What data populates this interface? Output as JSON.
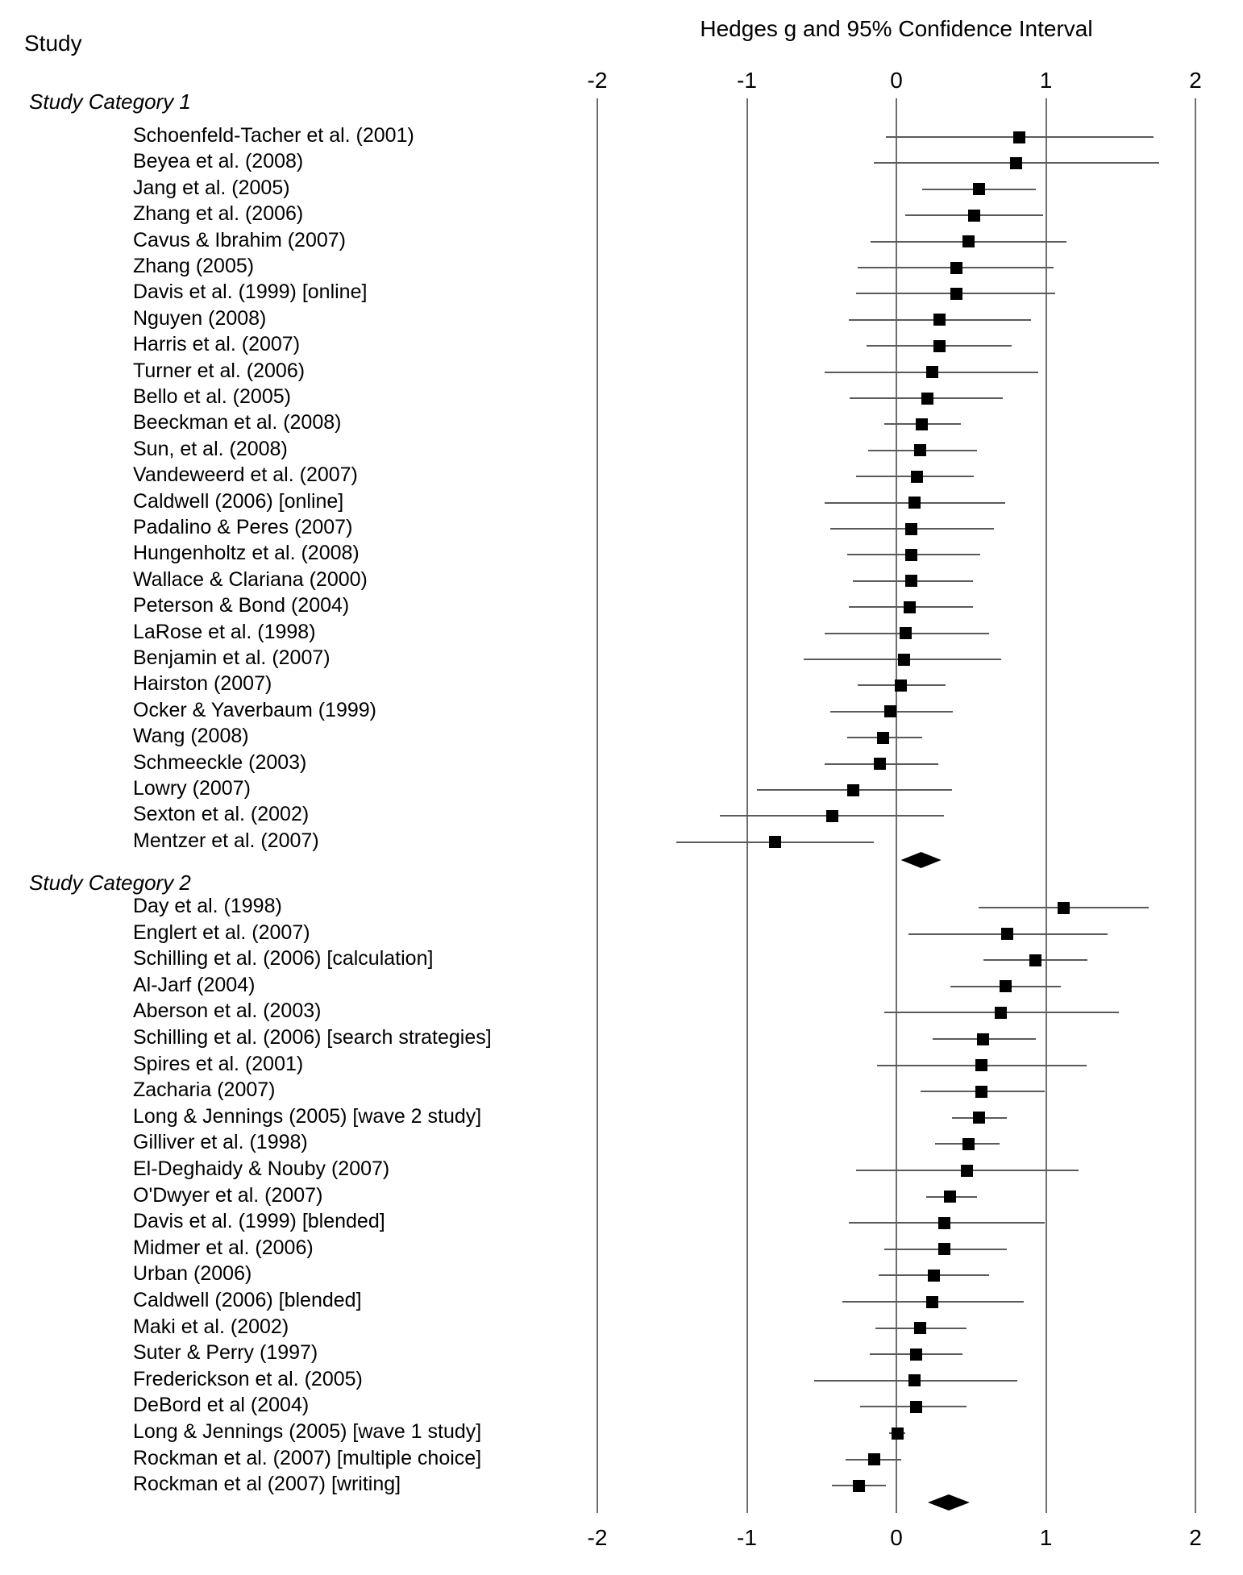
{
  "page": {
    "left_header": "Study"
  },
  "chart_data": {
    "type": "forest",
    "title": "Hedges g and 95% Confidence Interval",
    "left_header": "Study",
    "xlabel": "Hedges g",
    "xlim": [
      -2,
      2
    ],
    "x_ticks": [
      "-2",
      "-1",
      "0",
      "1",
      "2"
    ],
    "x_tick_values": [
      -2,
      -1,
      0,
      1,
      2
    ],
    "grid": "vertical-lines-at-ticks",
    "marker": "black-square",
    "summary_marker": "black-diamond",
    "groups": [
      {
        "label": "Study Category 1",
        "studies": [
          {
            "name": "Schoenfeld-Tacher et al. (2001)",
            "g": 0.82,
            "ci": [
              -0.07,
              1.72
            ]
          },
          {
            "name": "Beyea et al. (2008)",
            "g": 0.8,
            "ci": [
              -0.15,
              1.76
            ]
          },
          {
            "name": "Jang et al. (2005)",
            "g": 0.55,
            "ci": [
              0.17,
              0.93
            ]
          },
          {
            "name": "Zhang et al. (2006)",
            "g": 0.52,
            "ci": [
              0.06,
              0.98
            ]
          },
          {
            "name": "Cavus & Ibrahim (2007)",
            "g": 0.48,
            "ci": [
              -0.17,
              1.14
            ]
          },
          {
            "name": "Zhang (2005)",
            "g": 0.4,
            "ci": [
              -0.26,
              1.05
            ]
          },
          {
            "name": "Davis et al. (1999) [online]",
            "g": 0.4,
            "ci": [
              -0.27,
              1.06
            ]
          },
          {
            "name": "Nguyen (2008)",
            "g": 0.29,
            "ci": [
              -0.32,
              0.9
            ]
          },
          {
            "name": "Harris et al. (2007)",
            "g": 0.29,
            "ci": [
              -0.2,
              0.77
            ]
          },
          {
            "name": "Turner et al. (2006)",
            "g": 0.24,
            "ci": [
              -0.48,
              0.95
            ]
          },
          {
            "name": "Bello et al. (2005)",
            "g": 0.21,
            "ci": [
              -0.31,
              0.71
            ]
          },
          {
            "name": "Beeckman et al. (2008)",
            "g": 0.17,
            "ci": [
              -0.08,
              0.43
            ]
          },
          {
            "name": "Sun, et al. (2008)",
            "g": 0.16,
            "ci": [
              -0.19,
              0.54
            ]
          },
          {
            "name": "Vandeweerd et al. (2007)",
            "g": 0.14,
            "ci": [
              -0.27,
              0.52
            ]
          },
          {
            "name": "Caldwell (2006) [online]",
            "g": 0.12,
            "ci": [
              -0.48,
              0.73
            ]
          },
          {
            "name": "Padalino & Peres (2007)",
            "g": 0.1,
            "ci": [
              -0.44,
              0.65
            ]
          },
          {
            "name": "Hungenholtz et al. (2008)",
            "g": 0.1,
            "ci": [
              -0.33,
              0.56
            ]
          },
          {
            "name": "Wallace & Clariana (2000)",
            "g": 0.1,
            "ci": [
              -0.29,
              0.51
            ]
          },
          {
            "name": "Peterson & Bond (2004)",
            "g": 0.09,
            "ci": [
              -0.32,
              0.51
            ]
          },
          {
            "name": "LaRose et al. (1998)",
            "g": 0.06,
            "ci": [
              -0.48,
              0.62
            ]
          },
          {
            "name": "Benjamin et al. (2007)",
            "g": 0.05,
            "ci": [
              -0.62,
              0.7
            ]
          },
          {
            "name": "Hairston (2007)",
            "g": 0.03,
            "ci": [
              -0.26,
              0.33
            ]
          },
          {
            "name": "Ocker & Yaverbaum (1999)",
            "g": -0.04,
            "ci": [
              -0.44,
              0.38
            ]
          },
          {
            "name": "Wang (2008)",
            "g": -0.09,
            "ci": [
              -0.33,
              0.17
            ]
          },
          {
            "name": "Schmeeckle (2003)",
            "g": -0.11,
            "ci": [
              -0.48,
              0.28
            ]
          },
          {
            "name": "Lowry (2007)",
            "g": -0.29,
            "ci": [
              -0.93,
              0.37
            ]
          },
          {
            "name": "Sexton et al. (2002)",
            "g": -0.43,
            "ci": [
              -1.18,
              0.32
            ]
          },
          {
            "name": "Mentzer et al. (2007)",
            "g": -0.81,
            "ci": [
              -1.47,
              -0.15
            ]
          }
        ],
        "summary": {
          "g": 0.16,
          "ci": [
            0.03,
            0.3
          ]
        }
      },
      {
        "label": "Study Category 2",
        "studies": [
          {
            "name": "Day et al. (1998)",
            "g": 1.12,
            "ci": [
              0.55,
              1.69
            ]
          },
          {
            "name": "Englert et al. (2007)",
            "g": 0.74,
            "ci": [
              0.08,
              1.41
            ]
          },
          {
            "name": "Schilling et al. (2006) [calculation]",
            "g": 0.93,
            "ci": [
              0.58,
              1.28
            ]
          },
          {
            "name": "Al-Jarf (2004)",
            "g": 0.73,
            "ci": [
              0.36,
              1.1
            ]
          },
          {
            "name": "Aberson et al. (2003)",
            "g": 0.7,
            "ci": [
              -0.08,
              1.49
            ]
          },
          {
            "name": "Schilling et al. (2006) [search strategies]",
            "g": 0.58,
            "ci": [
              0.24,
              0.93
            ]
          },
          {
            "name": "Spires et al. (2001)",
            "g": 0.57,
            "ci": [
              -0.13,
              1.27
            ]
          },
          {
            "name": "Zacharia (2007)",
            "g": 0.57,
            "ci": [
              0.16,
              0.99
            ]
          },
          {
            "name": "Long & Jennings (2005) [wave 2 study]",
            "g": 0.55,
            "ci": [
              0.37,
              0.74
            ]
          },
          {
            "name": "Gilliver et al. (1998)",
            "g": 0.48,
            "ci": [
              0.26,
              0.69
            ]
          },
          {
            "name": "El-Deghaidy & Nouby (2007)",
            "g": 0.47,
            "ci": [
              -0.27,
              1.22
            ]
          },
          {
            "name": "O'Dwyer et al. (2007)",
            "g": 0.36,
            "ci": [
              0.2,
              0.54
            ]
          },
          {
            "name": "Davis et al. (1999) [blended]",
            "g": 0.32,
            "ci": [
              -0.32,
              0.99
            ]
          },
          {
            "name": "Midmer et al. (2006)",
            "g": 0.32,
            "ci": [
              -0.08,
              0.74
            ]
          },
          {
            "name": "Urban (2006)",
            "g": 0.25,
            "ci": [
              -0.12,
              0.62
            ]
          },
          {
            "name": "Caldwell (2006) [blended]",
            "g": 0.24,
            "ci": [
              -0.36,
              0.85
            ]
          },
          {
            "name": "Maki et al. (2002)",
            "g": 0.16,
            "ci": [
              -0.14,
              0.47
            ]
          },
          {
            "name": "Suter & Perry (1997)",
            "g": 0.13,
            "ci": [
              -0.18,
              0.44
            ]
          },
          {
            "name": "Frederickson et al. (2005)",
            "g": 0.12,
            "ci": [
              -0.55,
              0.81
            ]
          },
          {
            "name": "DeBord et al (2004)",
            "g": 0.13,
            "ci": [
              -0.24,
              0.47
            ]
          },
          {
            "name": "Long & Jennings (2005)  [wave 1 study]",
            "g": 0.01,
            "ci": [
              -0.05,
              0.06
            ]
          },
          {
            "name": "Rockman et al. (2007) [multiple choice]",
            "g": -0.15,
            "ci": [
              -0.34,
              0.03
            ]
          },
          {
            "name": "Rockman et al (2007) [writing]",
            "g": -0.25,
            "ci": [
              -0.43,
              -0.07
            ]
          }
        ],
        "summary": {
          "g": 0.35,
          "ci": [
            0.21,
            0.49
          ]
        }
      }
    ]
  }
}
